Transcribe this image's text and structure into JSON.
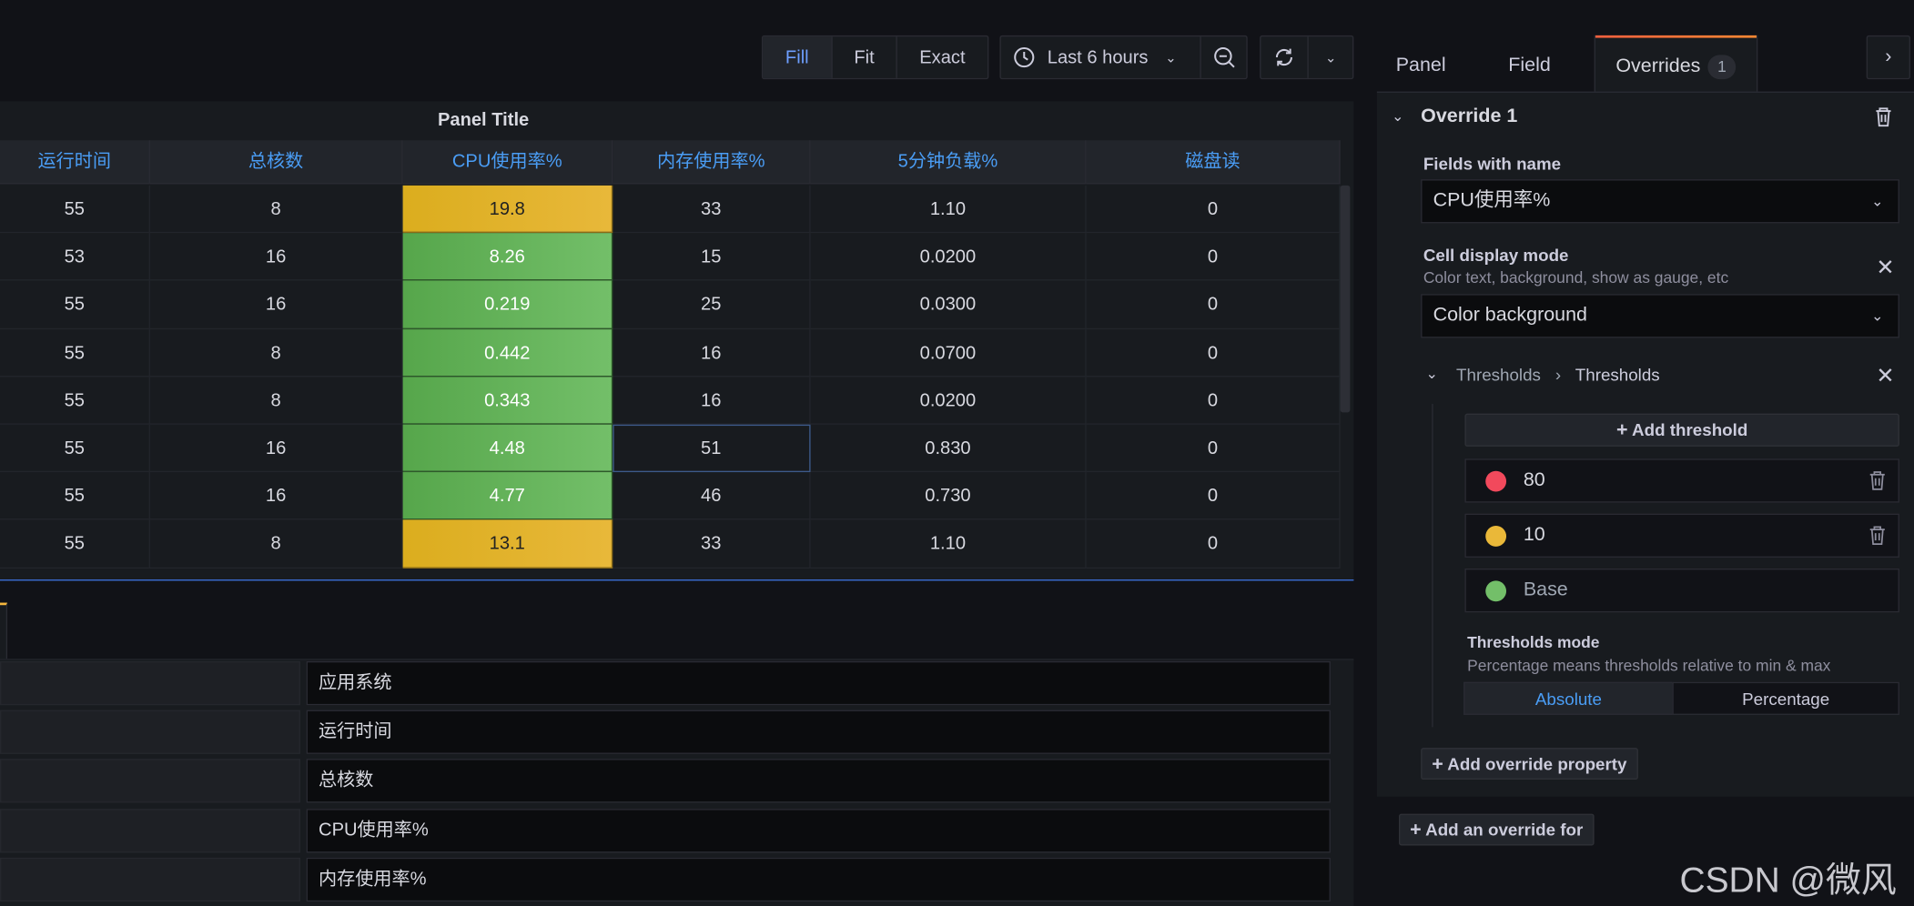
{
  "toolbar": {
    "fill": "Fill",
    "fit": "Fit",
    "exact": "Exact",
    "time_range": "Last 6 hours"
  },
  "panel": {
    "title": "Panel Title",
    "columns": [
      "运行时间",
      "总核数",
      "CPU使用率%",
      "内存使用率%",
      "5分钟负载%",
      "磁盘读"
    ],
    "rows": [
      [
        "55",
        "8",
        "19.8",
        "33",
        "1.10",
        "0"
      ],
      [
        "53",
        "16",
        "8.26",
        "15",
        "0.0200",
        "0"
      ],
      [
        "55",
        "16",
        "0.219",
        "25",
        "0.0300",
        "0"
      ],
      [
        "55",
        "8",
        "0.442",
        "16",
        "0.0700",
        "0"
      ],
      [
        "55",
        "8",
        "0.343",
        "16",
        "0.0200",
        "0"
      ],
      [
        "55",
        "16",
        "4.48",
        "51",
        "0.830",
        "0"
      ],
      [
        "55",
        "16",
        "4.77",
        "46",
        "0.730",
        "0"
      ],
      [
        "55",
        "8",
        "13.1",
        "33",
        "1.10",
        "0"
      ]
    ],
    "cpu_colors": [
      "yellow",
      "green",
      "green",
      "green",
      "green",
      "green",
      "green",
      "yellow"
    ]
  },
  "lower": {
    "fields": [
      "应用系统",
      "运行时间",
      "总核数",
      "CPU使用率%",
      "内存使用率%"
    ]
  },
  "sidebar": {
    "tabs": {
      "panel": "Panel",
      "field": "Field",
      "overrides": "Overrides",
      "overrides_count": "1"
    },
    "override_title": "Override 1",
    "fields_with_name_label": "Fields with name",
    "fields_with_name_value": "CPU使用率%",
    "cell_display_mode_label": "Cell display mode",
    "cell_display_mode_desc": "Color text, background, show as gauge, etc",
    "cell_display_mode_value": "Color background",
    "thresholds_crumb_1": "Thresholds",
    "thresholds_crumb_2": "Thresholds",
    "add_threshold": "Add threshold",
    "thresholds": [
      {
        "value": "80",
        "color": "#f2495c"
      },
      {
        "value": "10",
        "color": "#eab839"
      },
      {
        "value": "Base",
        "color": "#73bf69"
      }
    ],
    "thresholds_mode_label": "Thresholds mode",
    "thresholds_mode_desc": "Percentage means thresholds relative to min & max",
    "mode_absolute": "Absolute",
    "mode_percentage": "Percentage",
    "add_override_property": "Add override property",
    "add_override_for": "Add an override for"
  },
  "watermark": "CSDN @微风"
}
